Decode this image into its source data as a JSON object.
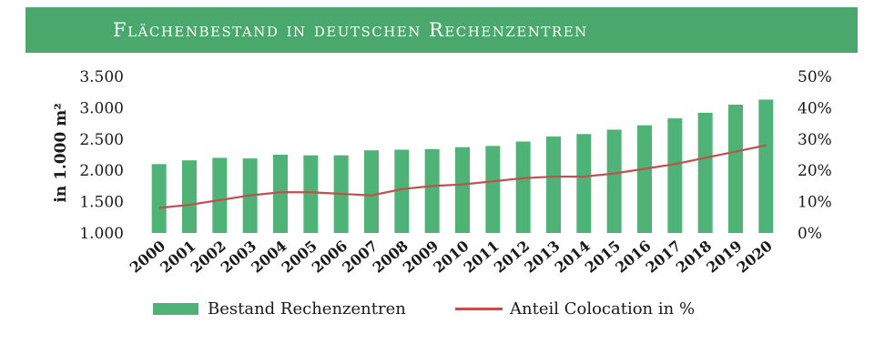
{
  "chart_data": {
    "type": "bar",
    "title": "Flächenbestand in deutschen Rechenzentren",
    "ylabel": "in 1.000 m²",
    "categories": [
      "2000",
      "2001",
      "2002",
      "2003",
      "2004",
      "2005",
      "2006",
      "2007",
      "2008",
      "2009",
      "2010",
      "2011",
      "2012",
      "2013",
      "2014",
      "2015",
      "2016",
      "2017",
      "2018",
      "2019",
      "2020"
    ],
    "y_ticks": [
      "1.000",
      "1.500",
      "2.000",
      "2.500",
      "3.000",
      "3.500"
    ],
    "y2_ticks": [
      "0%",
      "10%",
      "20%",
      "30%",
      "40%",
      "50%"
    ],
    "ylim": [
      1000,
      3500
    ],
    "y2lim": [
      0,
      50
    ],
    "series": [
      {
        "name": "Bestand Rechenzentren",
        "type": "bar",
        "axis": "left",
        "color": "#4fb377",
        "values": [
          2100,
          2160,
          2200,
          2190,
          2250,
          2240,
          2240,
          2320,
          2330,
          2340,
          2370,
          2390,
          2460,
          2540,
          2580,
          2650,
          2720,
          2830,
          2920,
          3050,
          3130
        ]
      },
      {
        "name": "Anteil Colocation in %",
        "type": "line",
        "axis": "right",
        "color": "#c0504d",
        "values": [
          8,
          9,
          10.5,
          12,
          13,
          13,
          12.5,
          12,
          14,
          15,
          15.5,
          16.5,
          17.5,
          18,
          18,
          19,
          20.5,
          22,
          24,
          26,
          28
        ]
      }
    ],
    "grid": false,
    "legend": "bottom"
  }
}
